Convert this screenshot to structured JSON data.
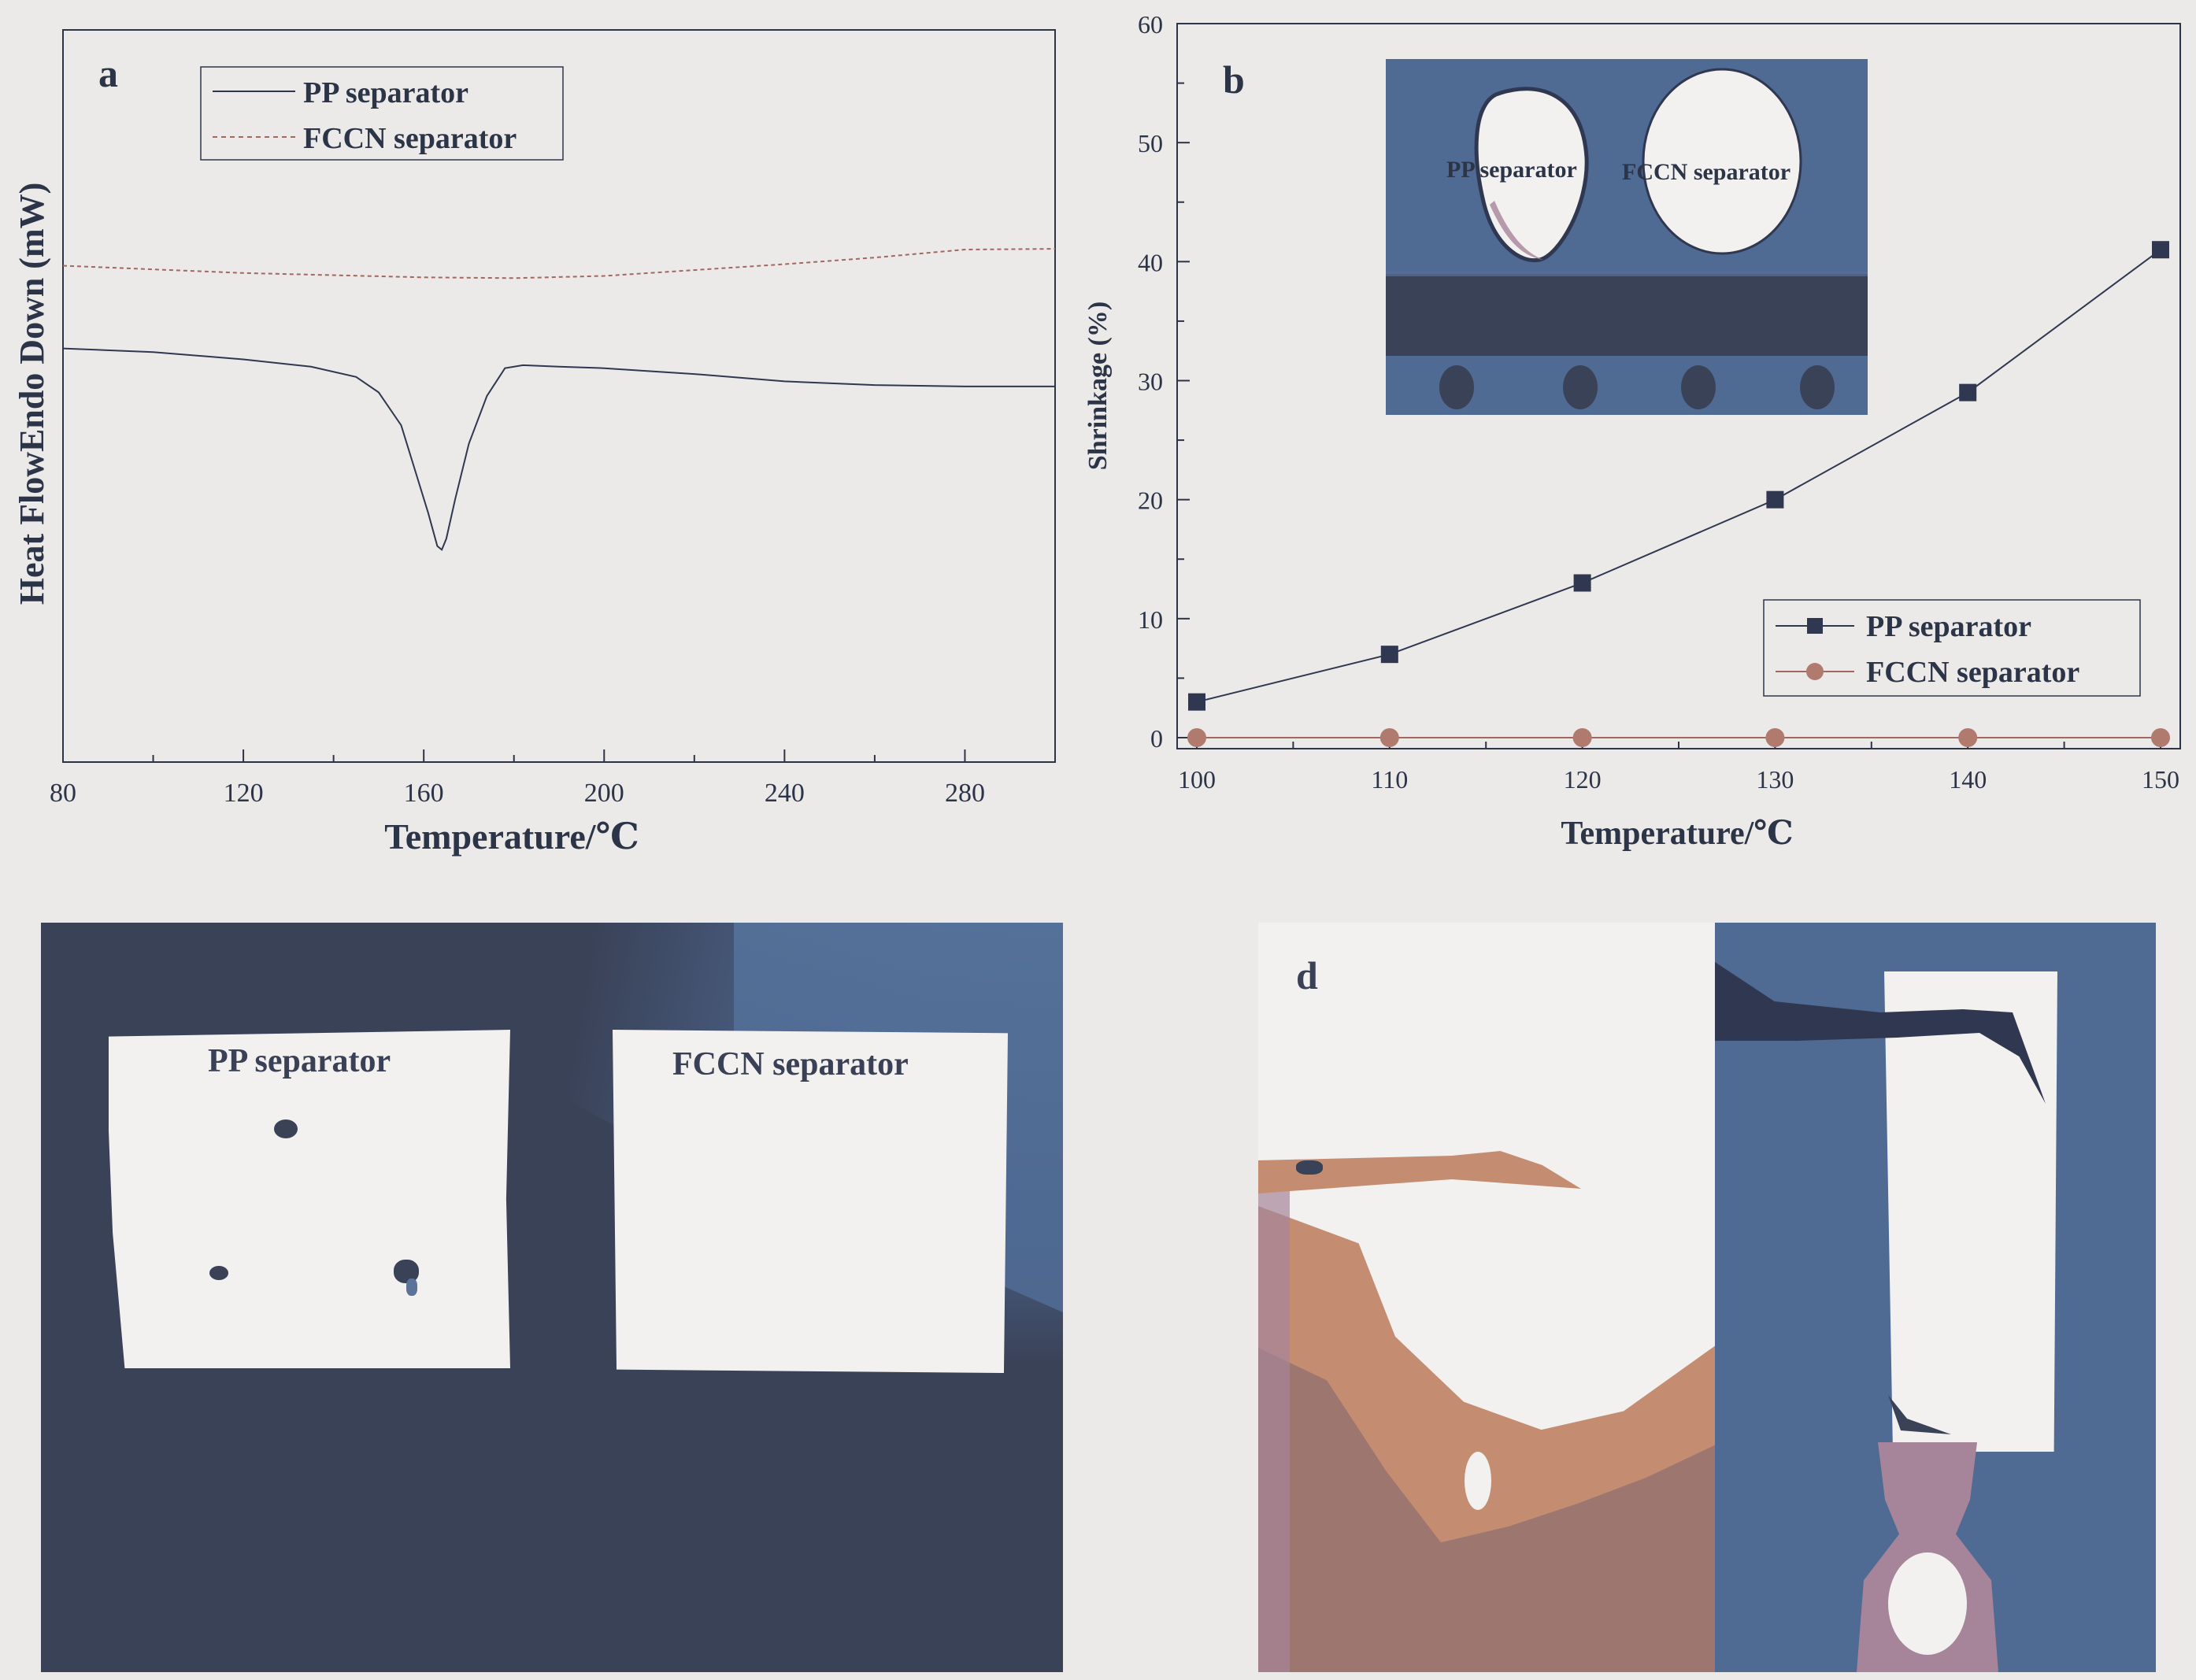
{
  "colors": {
    "pp": "#2f3850",
    "fccn": "#a3675f",
    "fccn_marker": "#b07a6e",
    "axis": "#2c3448",
    "photo_dark": "#3a4258",
    "photo_blue": "#4f6a93",
    "photo_white": "#f2f1ef",
    "photo_tan": "#c48d72",
    "photo_brown": "#9e7670",
    "photo_mauve": "#a6849a"
  },
  "chart_data": [
    {
      "panel_letter": "a",
      "type": "line",
      "xlabel": "Temperature/℃",
      "ylabel": "Heat FlowEndo Down (mW)",
      "xlim": [
        80,
        300
      ],
      "x_ticks": [
        80,
        120,
        160,
        200,
        240,
        280
      ],
      "x_tick_labels": [
        "80",
        "120",
        "160",
        "200",
        "240",
        "280"
      ],
      "y_tick_labels": [],
      "ylim": [
        0,
        100
      ],
      "grid": false,
      "legend": "top-left",
      "series": [
        {
          "name": "PP separator",
          "style": "solid",
          "x": [
            80,
            100,
            120,
            135,
            145,
            150,
            155,
            158,
            161,
            163,
            164,
            165,
            167,
            170,
            174,
            178,
            182,
            190,
            200,
            220,
            240,
            260,
            280,
            300
          ],
          "y": [
            56.5,
            56.0,
            55.0,
            54.0,
            52.6,
            50.5,
            46.0,
            40.0,
            34.0,
            29.5,
            29.0,
            30.5,
            36.0,
            43.5,
            50.0,
            53.8,
            54.2,
            54.0,
            53.8,
            53.0,
            52.0,
            51.5,
            51.3,
            51.3
          ]
        },
        {
          "name": "FCCN separator",
          "style": "dashed",
          "x": [
            80,
            120,
            160,
            180,
            200,
            240,
            260,
            280,
            300
          ],
          "y": [
            67.8,
            66.8,
            66.2,
            66.1,
            66.4,
            68.0,
            68.9,
            70.0,
            70.1
          ]
        }
      ]
    },
    {
      "panel_letter": "b",
      "type": "line",
      "xlabel": "Temperature/℃",
      "ylabel": "Shrinkage (%)",
      "xlim": [
        100,
        150
      ],
      "ylim": [
        0,
        60
      ],
      "x_ticks": [
        100,
        110,
        120,
        130,
        140,
        150
      ],
      "y_ticks": [
        0,
        10,
        20,
        30,
        40,
        50,
        60
      ],
      "grid": false,
      "legend": "bottom-right",
      "x": [
        100,
        110,
        120,
        130,
        140,
        150
      ],
      "series": [
        {
          "name": "PP separator",
          "marker": "square",
          "values": [
            3,
            7,
            13,
            20,
            29,
            41
          ]
        },
        {
          "name": "FCCN separator",
          "marker": "circle",
          "values": [
            0,
            0,
            0,
            0,
            0,
            0
          ]
        }
      ],
      "inset": {
        "labels": [
          "PP separator",
          "FCCN separator"
        ]
      }
    }
  ],
  "photo_c": {
    "labels": [
      "PP separator",
      "FCCN separator"
    ]
  },
  "photo_d": {
    "panel_letter": "d"
  }
}
